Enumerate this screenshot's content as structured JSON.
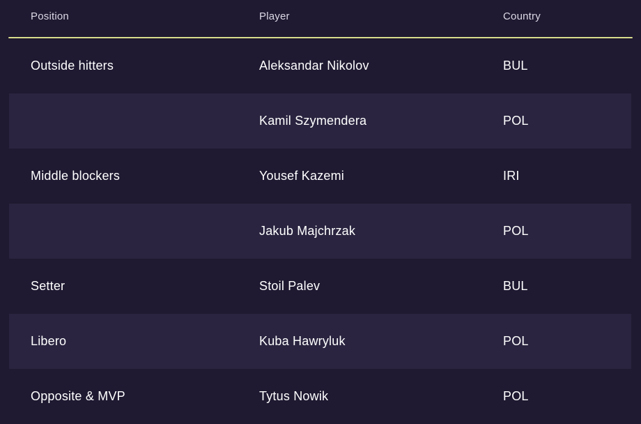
{
  "colors": {
    "background": "#1f1931",
    "row_band": "#2a2440",
    "accent_line": "#d8dc8c",
    "header_text": "#dcd9e6",
    "body_text": "#ffffff"
  },
  "table": {
    "columns": [
      {
        "key": "position",
        "label": "Position"
      },
      {
        "key": "player",
        "label": "Player"
      },
      {
        "key": "country",
        "label": "Country"
      }
    ],
    "rows": [
      {
        "position": "Outside hitters",
        "player": "Aleksandar Nikolov",
        "country": "BUL",
        "highlight": false
      },
      {
        "position": "",
        "player": "Kamil Szymendera",
        "country": "POL",
        "highlight": true
      },
      {
        "position": "Middle blockers",
        "player": "Yousef Kazemi",
        "country": "IRI",
        "highlight": false
      },
      {
        "position": "",
        "player": "Jakub Majchrzak",
        "country": "POL",
        "highlight": true
      },
      {
        "position": "Setter",
        "player": "Stoil Palev",
        "country": "BUL",
        "highlight": false
      },
      {
        "position": "Libero",
        "player": "Kuba Hawryluk",
        "country": "POL",
        "highlight": true
      },
      {
        "position": "Opposite & MVP",
        "player": "Tytus Nowik",
        "country": "POL",
        "highlight": false
      }
    ]
  }
}
